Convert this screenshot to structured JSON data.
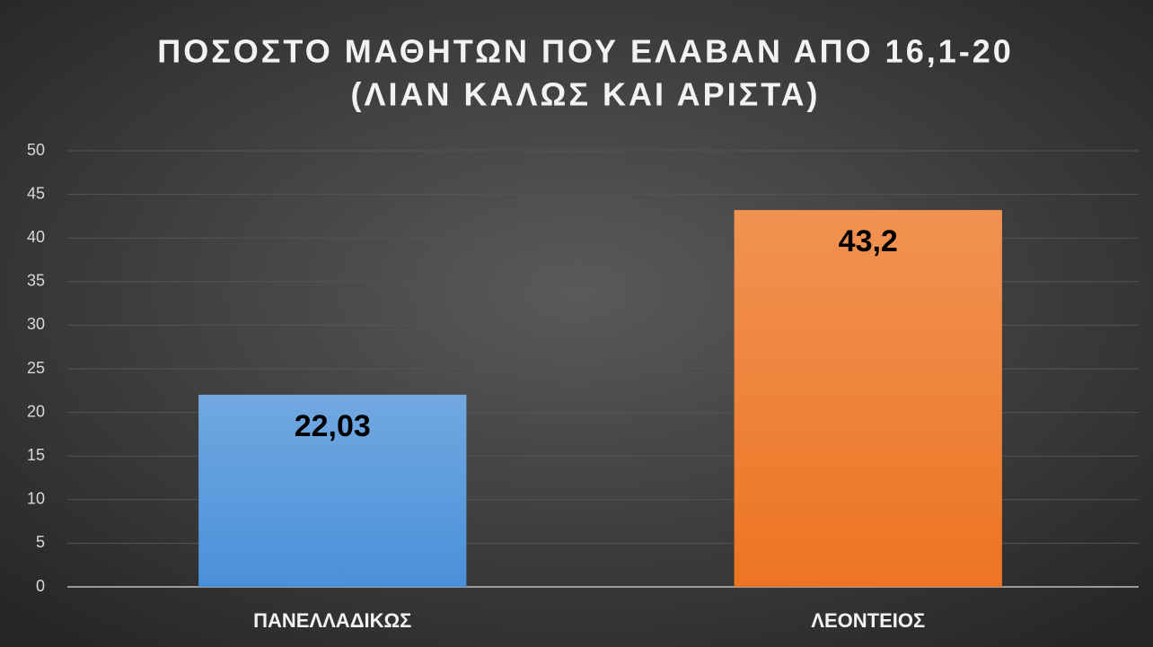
{
  "chart_data": {
    "type": "bar",
    "title": [
      "ΠΟΣΟΣΤΟ  ΜΑΘΗΤΩΝ ΠΟΥ ΕΛΑΒΑΝ ΑΠΟ 16,1-20",
      "(ΛΙΑΝ ΚΑΛΩΣ ΚΑΙ ΑΡΙΣΤΑ)"
    ],
    "categories": [
      "ΠΑΝΕΛΛΑΔΙΚΩΣ",
      "ΛΕΟΝΤΕΙΟΣ"
    ],
    "values": [
      22.03,
      43.2
    ],
    "value_labels": [
      "22,03",
      "43,2"
    ],
    "colors": [
      "#4a90d9",
      "#ed7422"
    ],
    "ylim": [
      0,
      50
    ],
    "yticks": [
      0,
      5,
      10,
      15,
      20,
      25,
      30,
      35,
      40,
      45,
      50
    ],
    "grid": true
  }
}
